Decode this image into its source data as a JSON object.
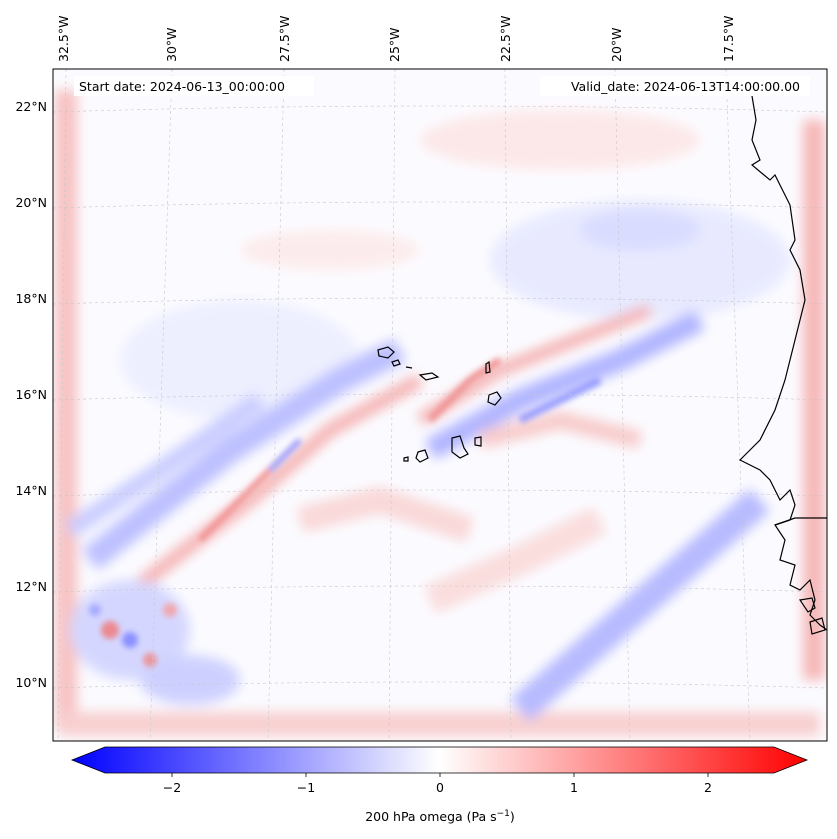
{
  "map": {
    "start_label": "Start date: 2024-06-13_00:00:00",
    "valid_label": "Valid_date: 2024-06-13T14:00:00.00",
    "lon_labels": [
      "32.5°W",
      "30°W",
      "27.5°W",
      "25°W",
      "22.5°W",
      "20°W",
      "17.5°W"
    ],
    "lat_labels": [
      "22°N",
      "20°N",
      "18°N",
      "16°N",
      "14°N",
      "12°N",
      "10°N"
    ],
    "field_colors": {
      "negative": "#0000ff",
      "neutral": "#ffffff",
      "positive": "#ff0000",
      "coast": "#000000"
    }
  },
  "colorbar": {
    "ticks": [
      "−2",
      "−1",
      "0",
      "1",
      "2"
    ],
    "label_main": "200 hPa omega (Pa s",
    "label_sup": "−1",
    "label_close": ")",
    "range": [
      -2.5,
      2.5
    ]
  }
}
